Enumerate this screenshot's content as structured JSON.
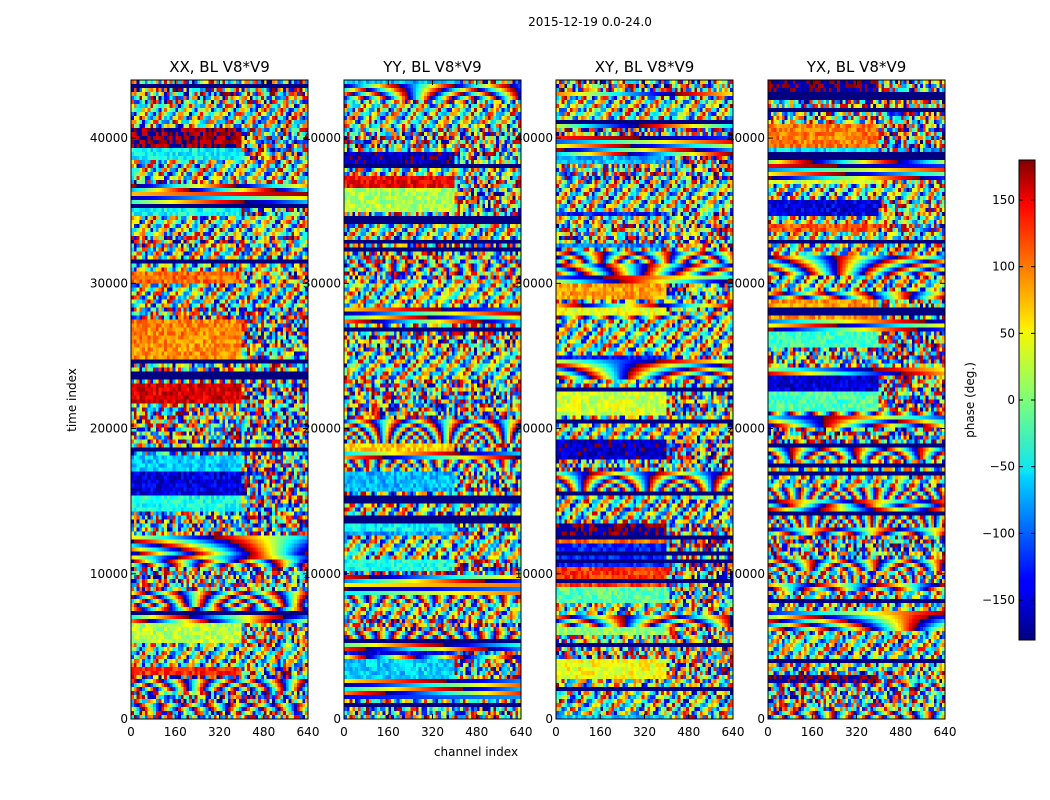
{
  "chart_data": {
    "type": "heatmap",
    "suptitle": "2015-12-19 0.0-24.0",
    "xlabel": "channel index",
    "ylabel": "time index",
    "colorbar_label": "phase (deg.)",
    "colormap": "jet",
    "colorbar_range": [
      -180,
      180
    ],
    "colorbar_ticks": [
      150,
      100,
      50,
      0,
      -50,
      -100,
      -150
    ],
    "colorbar_tick_labels": [
      "150",
      "100",
      "50",
      "0",
      "−50",
      "−100",
      "−150"
    ],
    "xlim": [
      0,
      640
    ],
    "ylim": [
      0,
      44000
    ],
    "x_ticks": [
      0,
      160,
      320,
      480,
      640
    ],
    "x_tick_labels": [
      "0",
      "160",
      "320",
      "480",
      "640"
    ],
    "y_ticks": [
      0,
      10000,
      20000,
      30000,
      40000
    ],
    "y_tick_labels": [
      "0",
      "10000",
      "20000",
      "30000",
      "40000"
    ],
    "panels": [
      {
        "title": "XX, BL V8*V9"
      },
      {
        "title": "YY, BL V8*V9"
      },
      {
        "title": "XY, BL V8*V9"
      },
      {
        "title": "YX, BL V8*V9"
      }
    ]
  }
}
